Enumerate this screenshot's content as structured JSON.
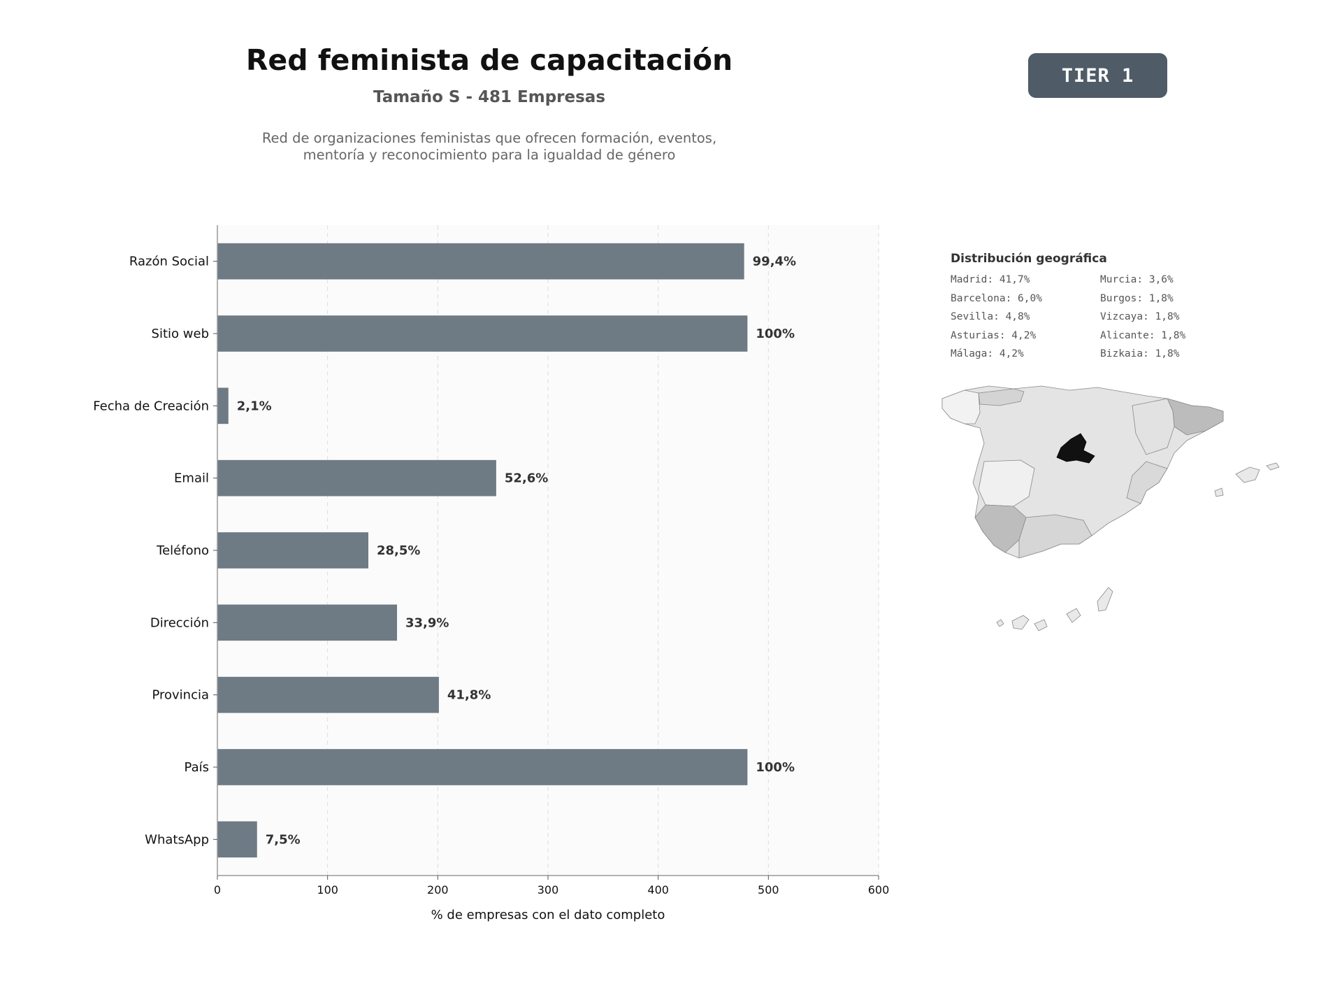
{
  "header": {
    "title": "Red feminista de capacitación",
    "subtitle": "Tamaño S - 481 Empresas",
    "description_line1": "Red de organizaciones feministas que ofrecen formación, eventos,",
    "description_line2": "mentoría y reconocimiento para la igualdad de género",
    "tier": "TIER 1"
  },
  "chart_data": {
    "type": "bar",
    "orientation": "horizontal",
    "categories": [
      "Razón Social",
      "Sitio web",
      "Fecha de Creación",
      "Email",
      "Teléfono",
      "Dirección",
      "Provincia",
      "País",
      "WhatsApp"
    ],
    "values": [
      478,
      481,
      10,
      253,
      137,
      163,
      201,
      481,
      36
    ],
    "value_labels": [
      "99,4%",
      "100%",
      "2,1%",
      "52,6%",
      "28,5%",
      "33,9%",
      "41,8%",
      "100%",
      "7,5%"
    ],
    "xlabel": "% de empresas con el dato completo",
    "xlim": [
      0,
      600
    ],
    "xticks": [
      0,
      100,
      200,
      300,
      400,
      500,
      600
    ],
    "grid": "vertical dashed",
    "bar_color": "#6e7a84"
  },
  "geo": {
    "title": "Distribución geográfica",
    "column_left": [
      "Madrid: 41,7%",
      "Barcelona: 6,0%",
      "Sevilla: 4,8%",
      "Asturias: 4,2%",
      "Málaga: 4,2%"
    ],
    "column_right": [
      "Murcia: 3,6%",
      "Burgos: 1,8%",
      "Vizcaya: 1,8%",
      "Alicante: 1,8%",
      "Bizkaia: 1,8%"
    ],
    "highlight_color": "#111111",
    "base_color": "#dcdcdc"
  }
}
